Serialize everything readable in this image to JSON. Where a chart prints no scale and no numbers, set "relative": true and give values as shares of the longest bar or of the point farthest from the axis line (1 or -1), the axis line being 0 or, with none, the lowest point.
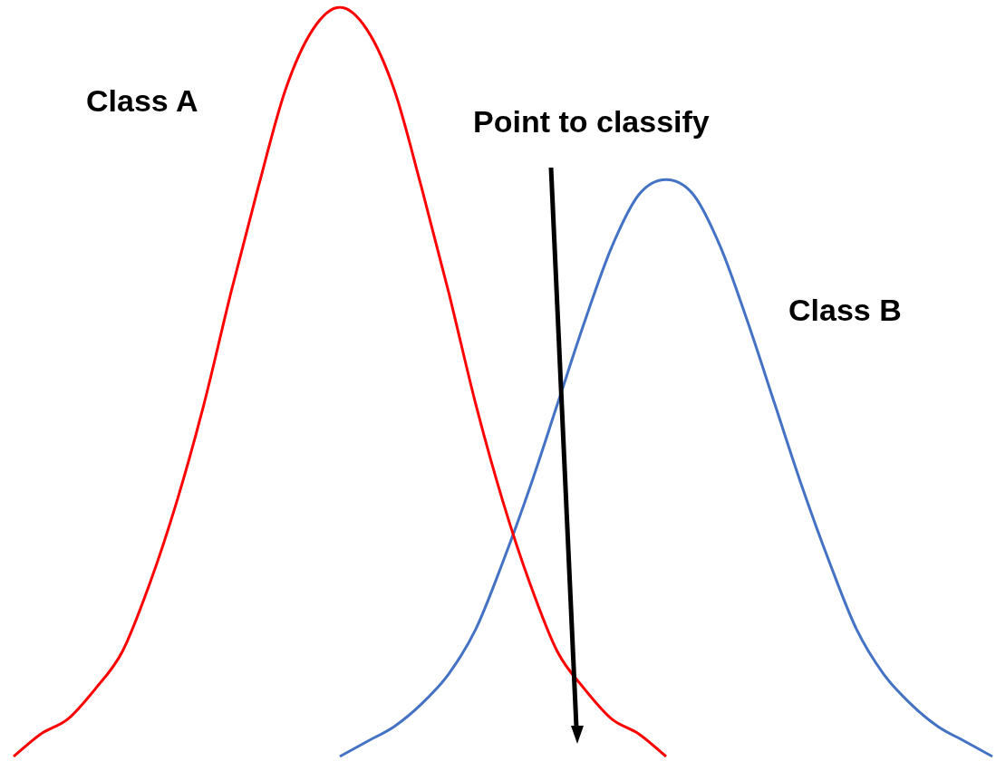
{
  "chart_data": {
    "type": "line",
    "relative": true,
    "categories": [
      null,
      null,
      null,
      null,
      null,
      null,
      null,
      null,
      null,
      null,
      null,
      null,
      null,
      null,
      null,
      null,
      null,
      null,
      null,
      null,
      null,
      null,
      null,
      null,
      null,
      null,
      null,
      null,
      null,
      null,
      null,
      null,
      null,
      null,
      null,
      null,
      null
    ],
    "series": [
      {
        "name": "Class A",
        "color": "#ff0000",
        "values": [
          0,
          0.03,
          0.05,
          0.09,
          0.14,
          0.23,
          0.34,
          0.47,
          0.62,
          0.76,
          0.89,
          0.97,
          1,
          0.97,
          0.89,
          0.76,
          0.62,
          0.47,
          0.34,
          0.23,
          0.14,
          0.09,
          0.05,
          0.03,
          0,
          null,
          null,
          null,
          null,
          null,
          null,
          null,
          null,
          null,
          null,
          null,
          null
        ]
      },
      {
        "name": "Class B",
        "color": "#4472c4",
        "values": [
          null,
          null,
          null,
          null,
          null,
          null,
          null,
          null,
          null,
          null,
          null,
          null,
          0,
          0.02,
          0.04,
          0.07,
          0.11,
          0.17,
          0.26,
          0.36,
          0.47,
          0.58,
          0.68,
          0.75,
          0.77,
          0.75,
          0.68,
          0.58,
          0.47,
          0.36,
          0.26,
          0.17,
          0.11,
          0.07,
          0.04,
          0.02,
          0
        ]
      }
    ],
    "annotations": [
      "Point to classify"
    ],
    "grid": false,
    "legend": false,
    "marker": "none",
    "line_style": "solid"
  }
}
